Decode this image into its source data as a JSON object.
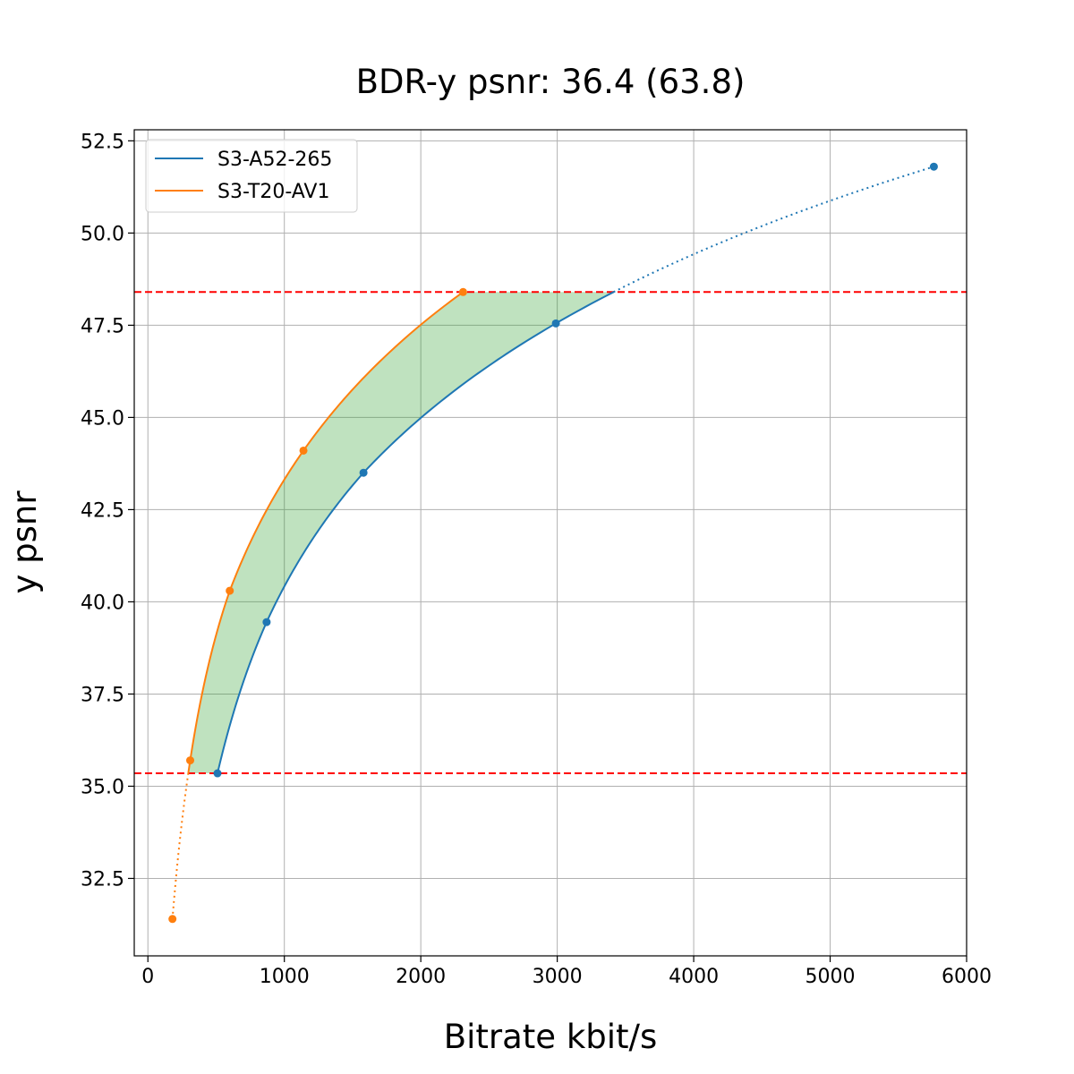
{
  "chart_data": {
    "type": "line",
    "title": "BDR-y psnr: 36.4 (63.8)",
    "xlabel": "Bitrate kbit/s",
    "ylabel": "y psnr",
    "xlim": [
      -100,
      6000
    ],
    "ylim": [
      30.4,
      52.8
    ],
    "xticks": [
      0,
      1000,
      2000,
      3000,
      4000,
      5000,
      6000
    ],
    "xtick_labels": [
      "0",
      "1000",
      "2000",
      "3000",
      "4000",
      "5000",
      "6000"
    ],
    "yticks": [
      32.5,
      35.0,
      37.5,
      40.0,
      42.5,
      45.0,
      47.5,
      50.0,
      52.5
    ],
    "ytick_labels": [
      "32.5",
      "35.0",
      "37.5",
      "40.0",
      "42.5",
      "45.0",
      "47.5",
      "50.0",
      "52.5"
    ],
    "grid": true,
    "legend_position": "top-left",
    "series": [
      {
        "name": "S3-A52-265",
        "color": "#1f77b4",
        "points": [
          {
            "x": 510,
            "y": 35.35
          },
          {
            "x": 870,
            "y": 39.45
          },
          {
            "x": 1580,
            "y": 43.5
          },
          {
            "x": 2990,
            "y": 47.55
          },
          {
            "x": 5760,
            "y": 51.8
          }
        ]
      },
      {
        "name": "S3-T20-AV1",
        "color": "#ff7f0e",
        "points": [
          {
            "x": 180,
            "y": 31.4
          },
          {
            "x": 310,
            "y": 35.7
          },
          {
            "x": 600,
            "y": 40.3
          },
          {
            "x": 1140,
            "y": 44.1
          },
          {
            "x": 2310,
            "y": 48.4
          }
        ]
      }
    ],
    "reference_lines": [
      {
        "axis": "y",
        "value": 48.4,
        "color": "#ff0000",
        "style": "dashed"
      },
      {
        "axis": "y",
        "value": 35.35,
        "color": "#ff0000",
        "style": "dashed"
      }
    ],
    "shaded_region": {
      "color": "#2ca02c",
      "opacity": 0.3,
      "between": [
        "S3-T20-AV1",
        "S3-A52-265"
      ],
      "ymin": 35.35,
      "ymax": 48.4
    }
  }
}
